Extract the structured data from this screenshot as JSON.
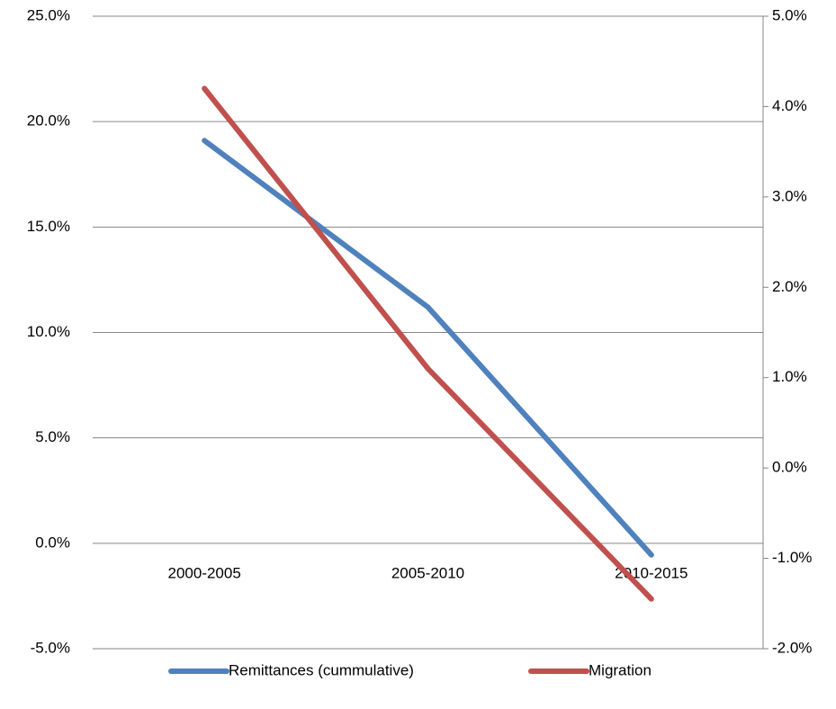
{
  "chart_data": {
    "type": "line",
    "categories": [
      "2000-2005",
      "2005-2010",
      "2010-2015"
    ],
    "series": [
      {
        "name": "Remittances (cummulative)",
        "color": "#4f81bd",
        "values": [
          19.1,
          11.2,
          -0.55
        ]
      },
      {
        "name": "Migration",
        "color": "#c0504d",
        "axis": "y2",
        "values": [
          4.2,
          1.1,
          -1.45
        ]
      }
    ],
    "ylim": [
      -5,
      25
    ],
    "yticks": [
      {
        "value": -5,
        "label": "-5.0%"
      },
      {
        "value": 0,
        "label": "0.0%"
      },
      {
        "value": 5,
        "label": "5.0%"
      },
      {
        "value": 10,
        "label": "10.0%"
      },
      {
        "value": 15,
        "label": "15.0%"
      },
      {
        "value": 20,
        "label": "20.0%"
      },
      {
        "value": 25,
        "label": "25.0%"
      }
    ],
    "y2lim": [
      -2,
      5
    ],
    "y2ticks": [
      {
        "value": -2,
        "label": "-2.0%"
      },
      {
        "value": -1,
        "label": "-1.0%"
      },
      {
        "value": 0,
        "label": "0.0%"
      },
      {
        "value": 1,
        "label": "1.0%"
      },
      {
        "value": 2,
        "label": "2.0%"
      },
      {
        "value": 3,
        "label": "3.0%"
      },
      {
        "value": 4,
        "label": "4.0%"
      },
      {
        "value": 5,
        "label": "5.0%"
      }
    ],
    "grid": true,
    "legend": "bottom"
  }
}
